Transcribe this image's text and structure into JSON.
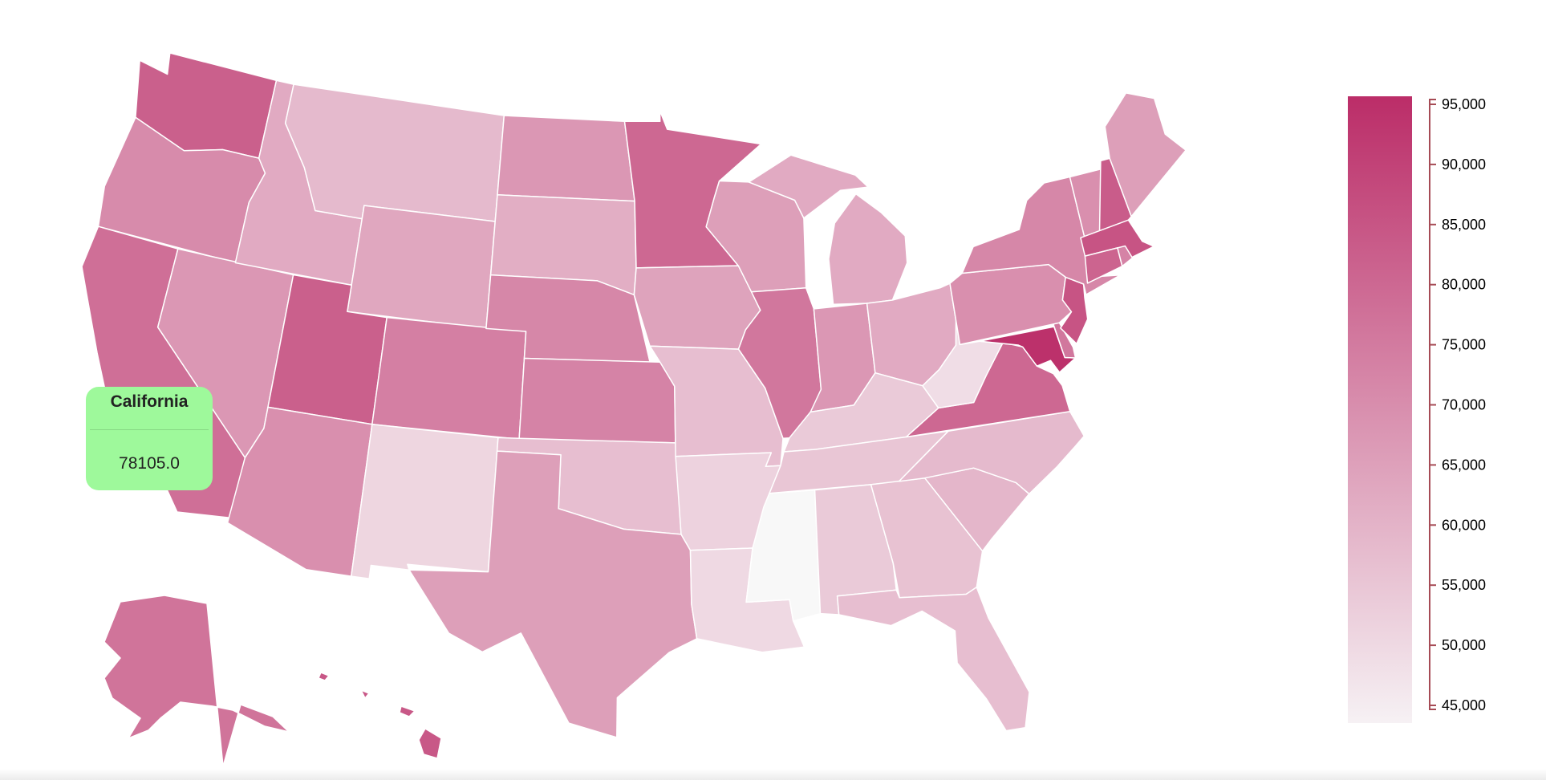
{
  "chart_data": {
    "type": "choropleth",
    "title": "",
    "color_scale": {
      "min": 45000,
      "max": 95000,
      "low_color": "#f6f1f4",
      "high_color": "#bb2d68"
    },
    "legend": {
      "placement": "right",
      "ticks": [
        "95,000",
        "90,000",
        "85,000",
        "80,000",
        "75,000",
        "70,000",
        "65,000",
        "60,000",
        "55,000",
        "50,000",
        "45,000"
      ],
      "tick_values": [
        95000,
        90000,
        85000,
        80000,
        75000,
        70000,
        65000,
        60000,
        55000,
        50000,
        45000
      ],
      "axis_color": "#a64b55"
    },
    "values": {
      "WA": 82000,
      "OR": 71000,
      "CA": 78105,
      "NV": 68000,
      "ID": 63000,
      "MT": 59000,
      "WY": 64000,
      "UT": 82000,
      "CO": 74000,
      "AZ": 70000,
      "NM": 52000,
      "ND": 68000,
      "SD": 62000,
      "NE": 72000,
      "KS": 73000,
      "OK": 58000,
      "TX": 66000,
      "MN": 80000,
      "IA": 65000,
      "MO": 58000,
      "AR": 53000,
      "LA": 51000,
      "MS": null,
      "WI": 66000,
      "IL": 76000,
      "MI": 63000,
      "IN": 68000,
      "OH": 63000,
      "KY": 55000,
      "TN": 56000,
      "AL": 55000,
      "GA": 57000,
      "FL": 58000,
      "SC": 60000,
      "NC": 59000,
      "VA": 80000,
      "WV": 50000,
      "MD": 94000,
      "DE": 76000,
      "PA": 70000,
      "NJ": 85000,
      "NY": 72000,
      "CT": 81000,
      "RI": 73000,
      "MA": 85000,
      "VT": 70000,
      "NH": 83000,
      "ME": 66000,
      "AK": 77000,
      "HI": 84000
    },
    "missing_color": "#f8f8f8"
  },
  "tooltip": {
    "state": "California",
    "value": "78105.0",
    "background": "#9ef99b"
  }
}
